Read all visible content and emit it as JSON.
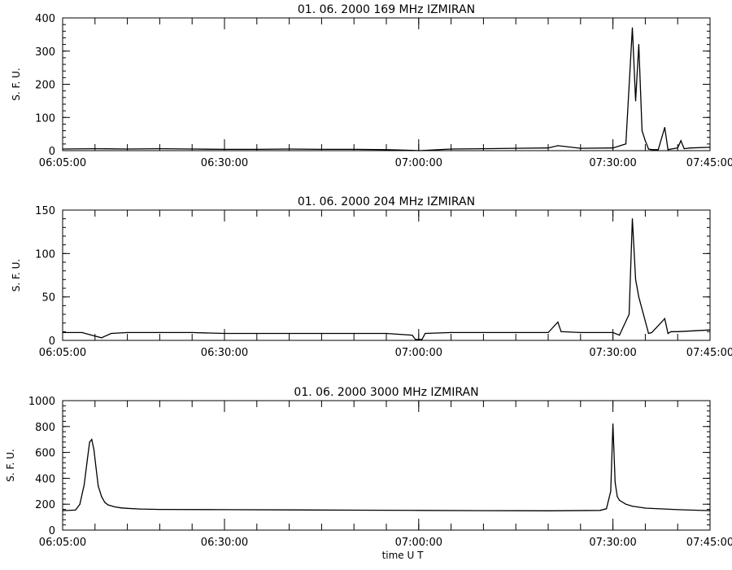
{
  "chart_data": [
    {
      "type": "line",
      "title": "01.  06.  2000    169  MHz    IZMIRAN",
      "ylabel": "S.  F.  U.",
      "xlabel": "",
      "xlim": [
        "06:05:00",
        "07:45:00"
      ],
      "ylim": [
        0,
        400
      ],
      "x_tick_labels": [
        "06:05:00",
        "06:30:00",
        "07:00:00",
        "07:30:00",
        "07:45:00"
      ],
      "y_tick_labels": [
        "0",
        "100",
        "200",
        "300",
        "400"
      ],
      "x": [
        "06:05:00",
        "06:10:00",
        "06:15:00",
        "06:20:00",
        "06:25:00",
        "06:30:00",
        "06:35:00",
        "06:40:00",
        "06:45:00",
        "06:50:00",
        "06:55:00",
        "06:59:00",
        "07:00:00",
        "07:01:00",
        "07:05:00",
        "07:10:00",
        "07:15:00",
        "07:20:00",
        "07:21:30",
        "07:25:00",
        "07:30:00",
        "07:32:00",
        "07:33:00",
        "07:33:30",
        "07:34:00",
        "07:34:30",
        "07:35:00",
        "07:35:30",
        "07:36:00",
        "07:37:00",
        "07:38:00",
        "07:38:30",
        "07:39:00",
        "07:40:00",
        "07:40:30",
        "07:41:00",
        "07:42:00",
        "07:45:00"
      ],
      "values": [
        5,
        6,
        5,
        6,
        5,
        4,
        4,
        5,
        4,
        4,
        3,
        1,
        0,
        1,
        5,
        6,
        7,
        8,
        15,
        7,
        8,
        20,
        370,
        150,
        320,
        60,
        30,
        5,
        3,
        3,
        70,
        3,
        5,
        8,
        30,
        6,
        8,
        10
      ],
      "grid": false
    },
    {
      "type": "line",
      "title": "01.  06.  2000    204  MHz    IZMIRAN",
      "ylabel": "S.  F.  U.",
      "xlabel": "",
      "xlim": [
        "06:05:00",
        "07:45:00"
      ],
      "ylim": [
        0,
        150
      ],
      "x_tick_labels": [
        "06:05:00",
        "06:30:00",
        "07:00:00",
        "07:30:00",
        "07:45:00"
      ],
      "y_tick_labels": [
        "0",
        "50",
        "100",
        "150"
      ],
      "x": [
        "06:05:00",
        "06:08:00",
        "06:10:00",
        "06:11:00",
        "06:12:30",
        "06:15:00",
        "06:20:00",
        "06:25:00",
        "06:30:00",
        "06:35:00",
        "06:40:00",
        "06:45:00",
        "06:50:00",
        "06:55:00",
        "06:59:00",
        "06:59:30",
        "07:00:30",
        "07:01:00",
        "07:05:00",
        "07:10:00",
        "07:15:00",
        "07:20:00",
        "07:21:30",
        "07:22:00",
        "07:25:00",
        "07:30:00",
        "07:31:00",
        "07:32:30",
        "07:33:00",
        "07:33:30",
        "07:34:00",
        "07:35:00",
        "07:35:30",
        "07:36:00",
        "07:38:00",
        "07:38:30",
        "07:39:00",
        "07:40:00",
        "07:45:00"
      ],
      "values": [
        9,
        9,
        5,
        3,
        8,
        9,
        9,
        9,
        8,
        8,
        8,
        8,
        8,
        8,
        6,
        1,
        1,
        8,
        9,
        9,
        9,
        9,
        21,
        10,
        9,
        9,
        6,
        30,
        140,
        70,
        50,
        22,
        8,
        9,
        25,
        8,
        10,
        10,
        12
      ],
      "grid": false
    },
    {
      "type": "line",
      "title": "01.  06.  2000    3000  MHz    IZMIRAN",
      "ylabel": "S.  F.  U.",
      "xlabel": "time    U T",
      "xlim": [
        "06:05:00",
        "07:45:00"
      ],
      "ylim": [
        0,
        1000
      ],
      "x_tick_labels": [
        "06:05:00",
        "06:30:00",
        "07:00:00",
        "07:30:00",
        "07:45:00"
      ],
      "y_tick_labels": [
        "0",
        "200",
        "400",
        "600",
        "800",
        "1000"
      ],
      "x": [
        "06:05:00",
        "06:07:00",
        "06:07:40",
        "06:08:20",
        "06:08:50",
        "06:09:10",
        "06:09:30",
        "06:09:50",
        "06:10:10",
        "06:10:30",
        "06:11:00",
        "06:11:30",
        "06:12:00",
        "06:13:00",
        "06:14:00",
        "06:15:00",
        "06:17:00",
        "06:20:00",
        "06:30:00",
        "06:40:00",
        "06:50:00",
        "07:00:00",
        "07:10:00",
        "07:20:00",
        "07:28:00",
        "07:29:00",
        "07:29:40",
        "07:30:00",
        "07:30:20",
        "07:30:40",
        "07:31:00",
        "07:32:00",
        "07:33:00",
        "07:35:00",
        "07:40:00",
        "07:45:00"
      ],
      "values": [
        150,
        155,
        200,
        350,
        550,
        680,
        700,
        620,
        480,
        340,
        260,
        215,
        195,
        180,
        172,
        168,
        163,
        160,
        158,
        156,
        154,
        152,
        150,
        149,
        152,
        165,
        300,
        820,
        370,
        260,
        230,
        200,
        185,
        170,
        158,
        150
      ],
      "grid": false
    }
  ]
}
